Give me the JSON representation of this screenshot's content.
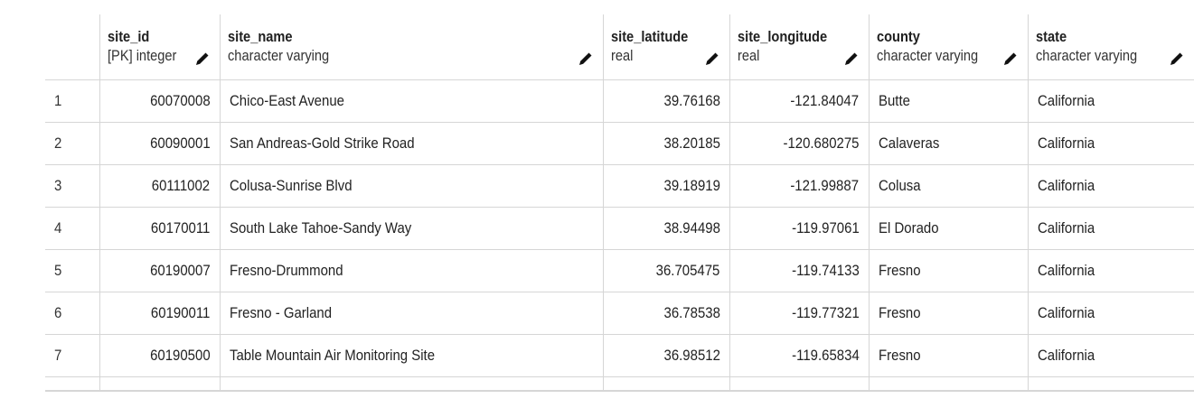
{
  "columns": [
    {
      "name": "site_id",
      "type": "[PK] integer"
    },
    {
      "name": "site_name",
      "type": "character varying"
    },
    {
      "name": "site_latitude",
      "type": "real"
    },
    {
      "name": "site_longitude",
      "type": "real"
    },
    {
      "name": "county",
      "type": "character varying"
    },
    {
      "name": "state",
      "type": "character varying"
    }
  ],
  "rows": [
    {
      "idx": "1",
      "site_id": "60070008",
      "site_name": "Chico-East Avenue",
      "site_latitude": "39.76168",
      "site_longitude": "-121.84047",
      "county": "Butte",
      "state": "California"
    },
    {
      "idx": "2",
      "site_id": "60090001",
      "site_name": "San Andreas-Gold Strike Road",
      "site_latitude": "38.20185",
      "site_longitude": "-120.680275",
      "county": "Calaveras",
      "state": "California"
    },
    {
      "idx": "3",
      "site_id": "60111002",
      "site_name": "Colusa-Sunrise Blvd",
      "site_latitude": "39.18919",
      "site_longitude": "-121.99887",
      "county": "Colusa",
      "state": "California"
    },
    {
      "idx": "4",
      "site_id": "60170011",
      "site_name": "South Lake Tahoe-Sandy Way",
      "site_latitude": "38.94498",
      "site_longitude": "-119.97061",
      "county": "El Dorado",
      "state": "California"
    },
    {
      "idx": "5",
      "site_id": "60190007",
      "site_name": "Fresno-Drummond",
      "site_latitude": "36.705475",
      "site_longitude": "-119.74133",
      "county": "Fresno",
      "state": "California"
    },
    {
      "idx": "6",
      "site_id": "60190011",
      "site_name": "Fresno - Garland",
      "site_latitude": "36.78538",
      "site_longitude": "-119.77321",
      "county": "Fresno",
      "state": "California"
    },
    {
      "idx": "7",
      "site_id": "60190500",
      "site_name": "Table Mountain Air Monitoring Site",
      "site_latitude": "36.98512",
      "site_longitude": "-119.65834",
      "county": "Fresno",
      "state": "California"
    }
  ],
  "icons": {
    "edit": "pencil-icon"
  },
  "colors": {
    "grid_line": "#d6d6d6",
    "text": "#222222"
  }
}
